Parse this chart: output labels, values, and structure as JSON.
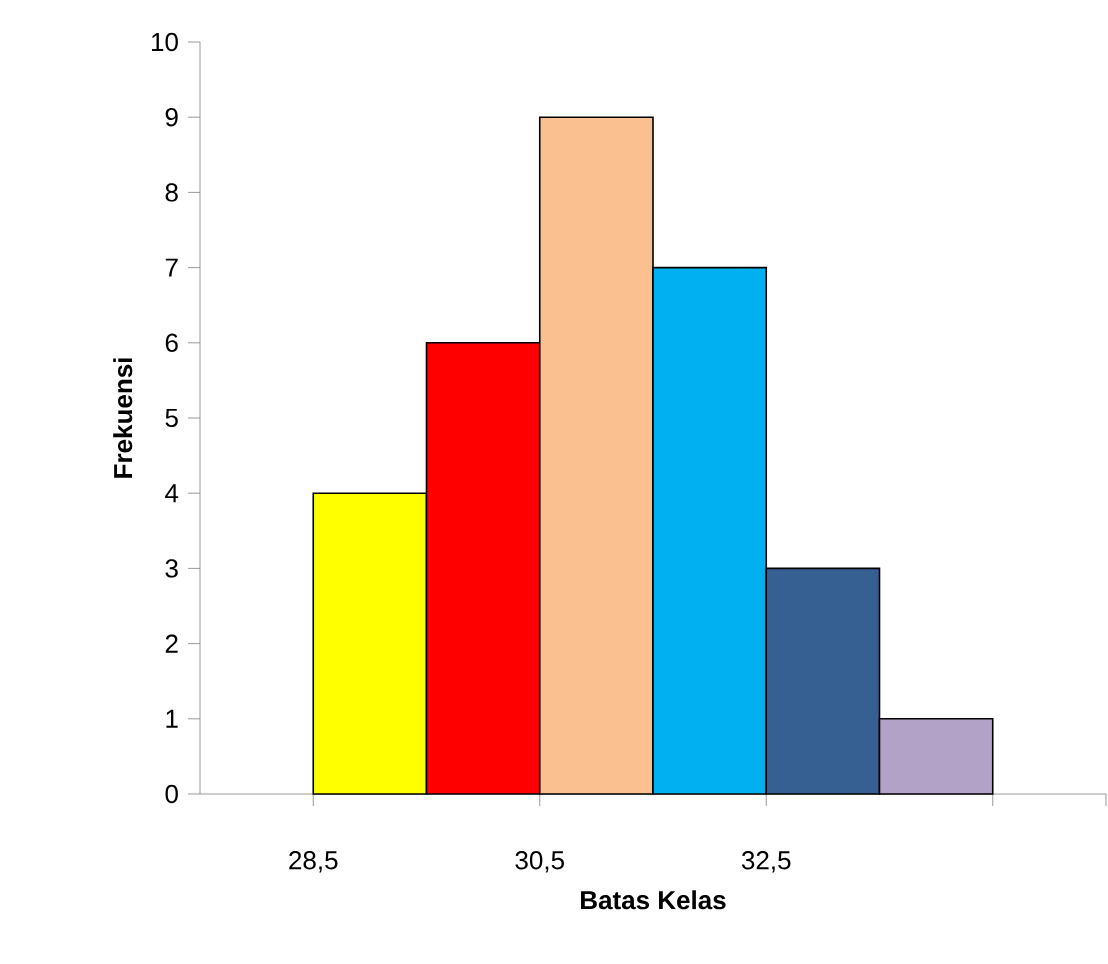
{
  "chart_data": {
    "type": "histogram",
    "xlabel": "Batas Kelas",
    "ylabel": "Frekuensi",
    "bins": [
      28.5,
      29.5,
      30.5,
      31.5,
      32.5,
      33.5,
      34.5
    ],
    "values": [
      4,
      6,
      9,
      7,
      3,
      1
    ],
    "colors": [
      "#ffff00",
      "#ff0000",
      "#fac090",
      "#00b0f0",
      "#376092",
      "#b3a2c7"
    ],
    "xlim": [
      27.5,
      35.5
    ],
    "xticks": [
      {
        "value": 28.5,
        "label": "28,5"
      },
      {
        "value": 30.5,
        "label": "30,5"
      },
      {
        "value": 32.5,
        "label": "32,5"
      },
      {
        "value": 34.5,
        "label": null
      },
      {
        "value": 35.5,
        "label": null
      }
    ],
    "ylim": [
      0,
      10
    ],
    "yticks": [
      0,
      1,
      2,
      3,
      4,
      5,
      6,
      7,
      8,
      9,
      10
    ],
    "grid": false
  }
}
